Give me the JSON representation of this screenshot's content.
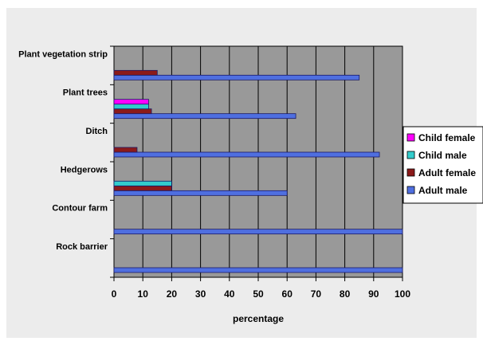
{
  "chart_data": {
    "type": "bar",
    "orientation": "horizontal",
    "categories": [
      "Rock barrier",
      "Contour farm",
      "Hedgerows",
      "Ditch",
      "Plant trees",
      "Plant vegetation strip"
    ],
    "series": [
      {
        "name": "Adult male",
        "color": "#4f6fe0",
        "values": [
          100,
          100,
          60,
          92,
          63,
          85
        ]
      },
      {
        "name": "Adult female",
        "color": "#8b1a1a",
        "values": [
          0,
          0,
          20,
          8,
          13,
          15
        ]
      },
      {
        "name": "Child male",
        "color": "#33cccc",
        "values": [
          0,
          0,
          20,
          0,
          12,
          0
        ]
      },
      {
        "name": "Child female",
        "color": "#ff00ff",
        "values": [
          0,
          0,
          0,
          0,
          12,
          0
        ]
      }
    ],
    "xlabel": "percentage",
    "ylabel": "",
    "xlim": [
      0,
      100
    ],
    "xticks": [
      "0",
      "10",
      "20",
      "30",
      "40",
      "50",
      "60",
      "70",
      "80",
      "90",
      "100"
    ],
    "grid": true,
    "plot_background": "#999999",
    "legend_position": "right"
  }
}
